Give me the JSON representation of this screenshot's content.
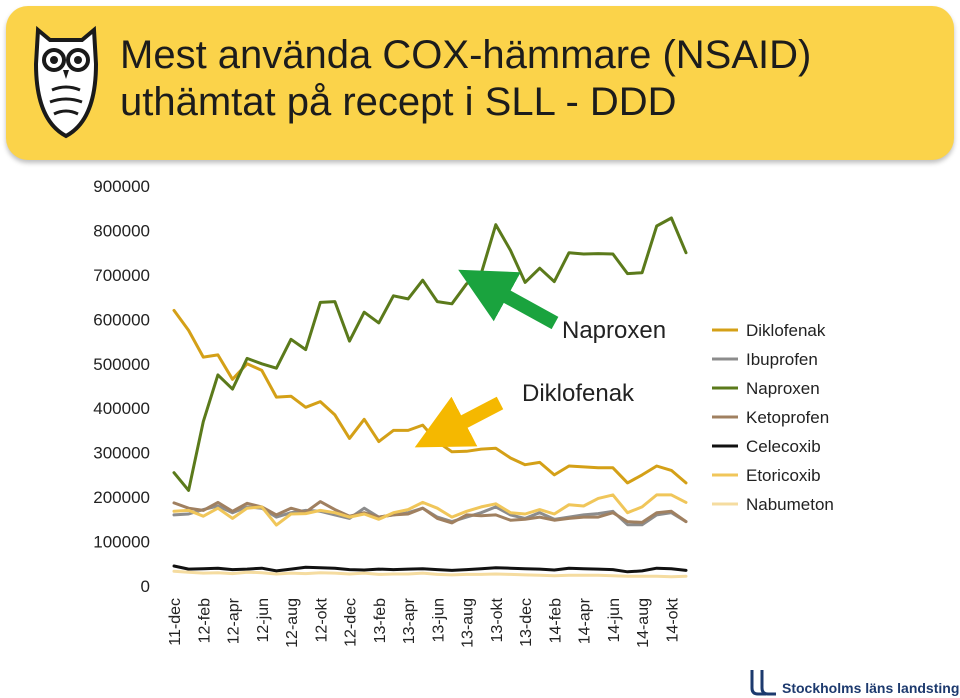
{
  "header": {
    "title_line1": "Mest använda COX-hämmare (NSAID)",
    "title_line2": "uthämtat på recept i SLL  - DDD"
  },
  "footer": {
    "org": "Stockholms läns landsting"
  },
  "chart_data": {
    "type": "line",
    "title": "Mest använda COX-hämmare (NSAID) uthämtat på recept i SLL - DDD",
    "ylim": [
      0,
      900000
    ],
    "yticks": [
      "900000",
      "800000",
      "700000",
      "600000",
      "500000",
      "400000",
      "300000",
      "200000",
      "100000",
      "0"
    ],
    "xtick_labels": [
      "11-dec",
      "12-feb",
      "12-apr",
      "12-jun",
      "12-aug",
      "12-okt",
      "12-dec",
      "13-feb",
      "13-apr",
      "13-jun",
      "13-aug",
      "13-okt",
      "13-dec",
      "14-feb",
      "14-apr",
      "14-jun",
      "14-aug",
      "14-okt"
    ],
    "x": [
      "11-dec",
      "12-jan",
      "12-feb",
      "12-mar",
      "12-apr",
      "12-maj",
      "12-jun",
      "12-jul",
      "12-aug",
      "12-sep",
      "12-okt",
      "12-nov",
      "12-dec",
      "13-jan",
      "13-feb",
      "13-mar",
      "13-apr",
      "13-maj",
      "13-jun",
      "13-jul",
      "13-aug",
      "13-sep",
      "13-okt",
      "13-nov",
      "13-dec",
      "14-jan",
      "14-feb",
      "14-mar",
      "14-apr",
      "14-maj",
      "14-jun",
      "14-jul",
      "14-aug",
      "14-sep",
      "14-okt",
      "14-nov"
    ],
    "grid": false,
    "legend_position": "right",
    "series": [
      {
        "name": "Diklofenak",
        "color": "#d4a017",
        "values": [
          620000,
          575000,
          515000,
          520000,
          465000,
          500000,
          485000,
          425000,
          427000,
          402000,
          415000,
          385000,
          332000,
          375000,
          325000,
          350000,
          350000,
          362000,
          325000,
          302000,
          303000,
          308000,
          310000,
          288000,
          273000,
          278000,
          250000,
          270000,
          268000,
          266000,
          266000,
          232000,
          250000,
          270000,
          260000,
          232000
        ]
      },
      {
        "name": "Ibuprofen",
        "color": "#8c8c8c",
        "values": [
          160000,
          162000,
          172000,
          180000,
          165000,
          178000,
          175000,
          155000,
          165000,
          170000,
          168000,
          160000,
          152000,
          175000,
          155000,
          160000,
          165000,
          175000,
          155000,
          145000,
          155000,
          165000,
          178000,
          160000,
          152000,
          165000,
          150000,
          155000,
          160000,
          163000,
          168000,
          138000,
          138000,
          160000,
          165000,
          145000
        ]
      },
      {
        "name": "Naproxen",
        "color": "#5b7a1b",
        "values": [
          255000,
          215000,
          370000,
          475000,
          443000,
          512000,
          500000,
          490000,
          555000,
          532000,
          638000,
          640000,
          551000,
          616000,
          592000,
          653000,
          646000,
          688000,
          640000,
          635000,
          680000,
          703000,
          813000,
          755000,
          683000,
          715000,
          685000,
          750000,
          747000,
          748000,
          747000,
          703000,
          705000,
          810000,
          828000,
          750000
        ]
      },
      {
        "name": "Ketoprofen",
        "color": "#a08060",
        "values": [
          187000,
          175000,
          170000,
          188000,
          168000,
          186000,
          178000,
          160000,
          175000,
          166000,
          190000,
          172000,
          157000,
          165000,
          155000,
          160000,
          162000,
          175000,
          152000,
          142000,
          160000,
          158000,
          160000,
          148000,
          150000,
          155000,
          148000,
          152000,
          155000,
          155000,
          165000,
          145000,
          143000,
          165000,
          168000,
          145000
        ]
      },
      {
        "name": "Celecoxib",
        "color": "#111111",
        "values": [
          45000,
          38000,
          39000,
          40000,
          37000,
          38000,
          40000,
          34000,
          38000,
          42000,
          41000,
          40000,
          37000,
          36000,
          38000,
          37000,
          38000,
          39000,
          37000,
          35000,
          37000,
          39000,
          41000,
          40000,
          39000,
          38000,
          36000,
          40000,
          39000,
          38000,
          37000,
          32000,
          34000,
          40000,
          39000,
          35000
        ]
      },
      {
        "name": "Etoricoxib",
        "color": "#f0c65a",
        "values": [
          168000,
          170000,
          157000,
          175000,
          152000,
          175000,
          178000,
          137000,
          162000,
          163000,
          170000,
          165000,
          155000,
          162000,
          150000,
          165000,
          172000,
          188000,
          175000,
          155000,
          168000,
          178000,
          185000,
          165000,
          162000,
          172000,
          162000,
          183000,
          180000,
          197000,
          205000,
          165000,
          178000,
          205000,
          205000,
          188000
        ]
      },
      {
        "name": "Nabumeton",
        "color": "#f5dca0",
        "values": [
          33000,
          31000,
          29000,
          30000,
          28000,
          31000,
          30000,
          27000,
          29000,
          28000,
          30000,
          29000,
          27000,
          29000,
          26000,
          27000,
          27000,
          29000,
          26000,
          25000,
          26000,
          26000,
          27000,
          26000,
          25000,
          24000,
          23000,
          24000,
          24000,
          24000,
          23000,
          22000,
          22000,
          22000,
          21000,
          22000
        ]
      }
    ],
    "annotations": [
      {
        "text": "Naproxen",
        "color": "#1aa33e"
      },
      {
        "text": "Diklofenak",
        "color": "#f5b800"
      }
    ]
  }
}
